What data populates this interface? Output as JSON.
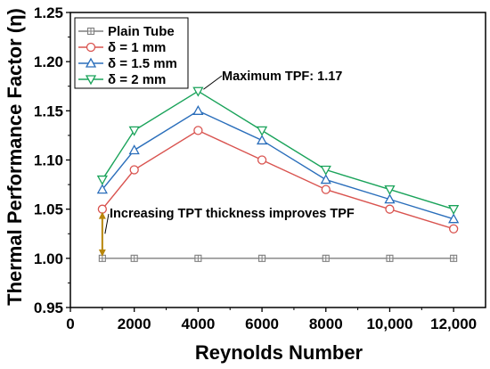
{
  "chart_data": {
    "type": "line",
    "xlabel": "Reynolds Number",
    "ylabel": "Thermal Performance Factor (η)",
    "xlim": [
      0,
      13000
    ],
    "ylim": [
      0.95,
      1.25
    ],
    "xticks": [
      0,
      2000,
      4000,
      6000,
      8000,
      10000,
      12000
    ],
    "xtick_labels": [
      "0",
      "2000",
      "4000",
      "6000",
      "8000",
      "10,000",
      "12,000"
    ],
    "yticks": [
      0.95,
      1.0,
      1.05,
      1.1,
      1.15,
      1.2,
      1.25
    ],
    "ytick_labels": [
      "0.95",
      "1.00",
      "1.05",
      "1.10",
      "1.15",
      "1.20",
      "1.25"
    ],
    "x": [
      1000,
      2000,
      4000,
      6000,
      8000,
      10000,
      12000
    ],
    "legend_position": "top-left",
    "series": [
      {
        "name": "Plain Tube",
        "color": "#7f7f7f",
        "marker": "square-cross",
        "values": [
          1.0,
          1.0,
          1.0,
          1.0,
          1.0,
          1.0,
          1.0
        ]
      },
      {
        "name": "δ = 1 mm",
        "color": "#d9534f",
        "marker": "circle",
        "values": [
          1.05,
          1.09,
          1.13,
          1.1,
          1.07,
          1.05,
          1.03
        ]
      },
      {
        "name": "δ = 1.5 mm",
        "color": "#2a6ebb",
        "marker": "triangle-up",
        "values": [
          1.07,
          1.11,
          1.15,
          1.12,
          1.08,
          1.06,
          1.04
        ]
      },
      {
        "name": "δ = 2 mm",
        "color": "#1aa35a",
        "marker": "triangle-down",
        "values": [
          1.08,
          1.13,
          1.17,
          1.13,
          1.09,
          1.07,
          1.05
        ]
      }
    ],
    "annotations": [
      {
        "text": "Maximum TPF: 1.17",
        "target": [
          4000,
          1.17
        ]
      },
      {
        "text": "Increasing TPT thickness improves TPF",
        "target": [
          1000,
          1.025
        ]
      }
    ],
    "double_arrow": {
      "x": 1000,
      "y_from": 1.0,
      "y_to": 1.05,
      "color": "#b8860b"
    }
  }
}
